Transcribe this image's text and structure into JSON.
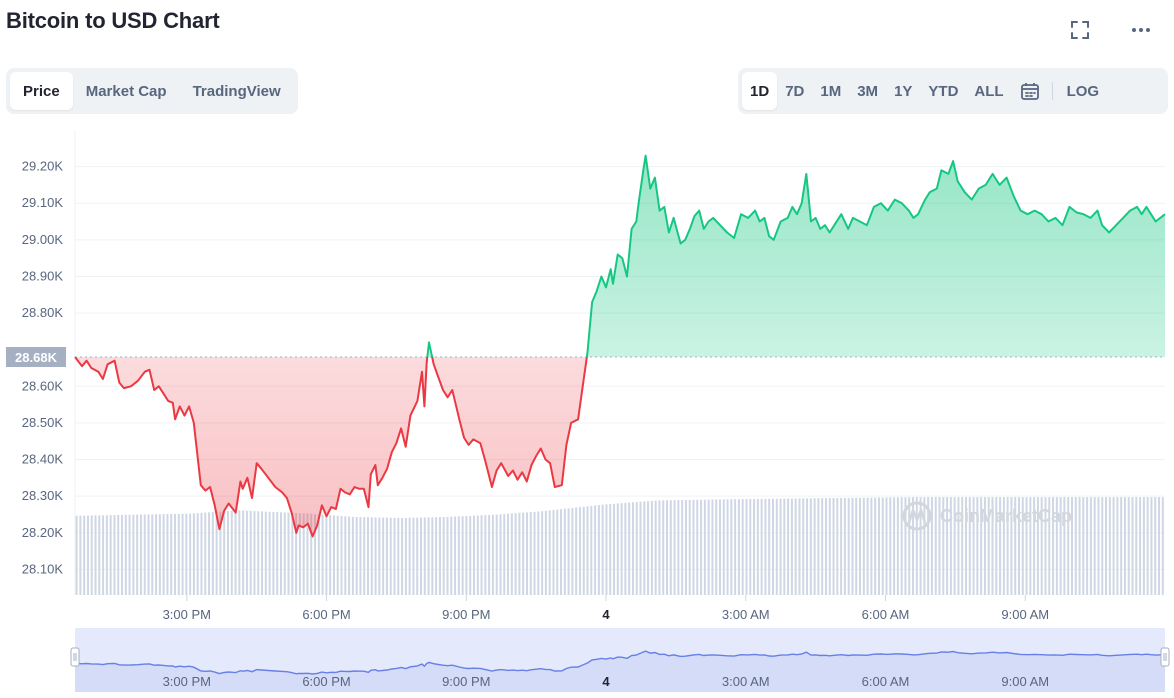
{
  "header": {
    "title": "Bitcoin to USD Chart"
  },
  "icons": {
    "fullscreen": "fullscreen-icon",
    "more": "more-icon",
    "calendar": "calendar-icon",
    "watermark_logo": "coinmarketcap-logo"
  },
  "metric_tabs": [
    {
      "label": "Price",
      "active": true
    },
    {
      "label": "Market Cap",
      "active": false
    },
    {
      "label": "TradingView",
      "active": false
    }
  ],
  "range_tabs": [
    {
      "label": "1D",
      "active": true
    },
    {
      "label": "7D",
      "active": false
    },
    {
      "label": "1M",
      "active": false
    },
    {
      "label": "3M",
      "active": false
    },
    {
      "label": "1Y",
      "active": false
    },
    {
      "label": "YTD",
      "active": false
    },
    {
      "label": "ALL",
      "active": false
    }
  ],
  "log_label": "LOG",
  "watermark": "CoinMarketCap",
  "colors": {
    "up": "#16c784",
    "down": "#ea3943",
    "volume": "#cfd6e4",
    "navigator_fill": "#e4e9fb",
    "navigator_line": "#6680e6",
    "baseline_label_bg": "#a6b0c3"
  },
  "chart_data": {
    "type": "area",
    "title": "Bitcoin to USD Chart",
    "baseline": 28680,
    "baseline_label": "28.68K",
    "ylim": [
      28030,
      29300
    ],
    "y_ticks": [
      {
        "value": 29200,
        "label": "29.20K"
      },
      {
        "value": 29100,
        "label": "29.10K"
      },
      {
        "value": 29000,
        "label": "29.00K"
      },
      {
        "value": 28900,
        "label": "28.90K"
      },
      {
        "value": 28800,
        "label": "28.80K"
      },
      {
        "value": 28600,
        "label": "28.60K"
      },
      {
        "value": 28500,
        "label": "28.50K"
      },
      {
        "value": 28400,
        "label": "28.40K"
      },
      {
        "value": 28300,
        "label": "28.30K"
      },
      {
        "value": 28200,
        "label": "28.20K"
      },
      {
        "value": 28100,
        "label": "28.10K"
      }
    ],
    "x_unit": "hours since chart start",
    "xlim": [
      0,
      23.4
    ],
    "x_ticks": [
      {
        "hour": 2.4,
        "label": "3:00 PM"
      },
      {
        "hour": 5.4,
        "label": "6:00 PM"
      },
      {
        "hour": 8.4,
        "label": "9:00 PM"
      },
      {
        "hour": 11.4,
        "label": "4"
      },
      {
        "hour": 14.4,
        "label": "3:00 AM"
      },
      {
        "hour": 17.4,
        "label": "6:00 AM"
      },
      {
        "hour": 20.4,
        "label": "9:00 AM"
      }
    ],
    "series": [
      {
        "name": "Price",
        "points": [
          [
            0.0,
            28680
          ],
          [
            0.15,
            28655
          ],
          [
            0.25,
            28670
          ],
          [
            0.35,
            28650
          ],
          [
            0.5,
            28640
          ],
          [
            0.6,
            28620
          ],
          [
            0.7,
            28660
          ],
          [
            0.85,
            28670
          ],
          [
            0.95,
            28610
          ],
          [
            1.05,
            28595
          ],
          [
            1.2,
            28600
          ],
          [
            1.35,
            28615
          ],
          [
            1.5,
            28640
          ],
          [
            1.6,
            28645
          ],
          [
            1.7,
            28590
          ],
          [
            1.8,
            28600
          ],
          [
            1.9,
            28580
          ],
          [
            2.0,
            28560
          ],
          [
            2.1,
            28555
          ],
          [
            2.15,
            28510
          ],
          [
            2.25,
            28545
          ],
          [
            2.35,
            28520
          ],
          [
            2.45,
            28545
          ],
          [
            2.55,
            28500
          ],
          [
            2.7,
            28330
          ],
          [
            2.8,
            28315
          ],
          [
            2.9,
            28325
          ],
          [
            3.0,
            28275
          ],
          [
            3.1,
            28210
          ],
          [
            3.2,
            28260
          ],
          [
            3.3,
            28280
          ],
          [
            3.45,
            28255
          ],
          [
            3.55,
            28340
          ],
          [
            3.6,
            28320
          ],
          [
            3.7,
            28350
          ],
          [
            3.8,
            28295
          ],
          [
            3.9,
            28390
          ],
          [
            4.0,
            28375
          ],
          [
            4.15,
            28350
          ],
          [
            4.3,
            28325
          ],
          [
            4.45,
            28310
          ],
          [
            4.55,
            28295
          ],
          [
            4.65,
            28255
          ],
          [
            4.75,
            28200
          ],
          [
            4.8,
            28220
          ],
          [
            4.9,
            28215
          ],
          [
            5.0,
            28225
          ],
          [
            5.1,
            28190
          ],
          [
            5.2,
            28220
          ],
          [
            5.3,
            28275
          ],
          [
            5.4,
            28245
          ],
          [
            5.5,
            28270
          ],
          [
            5.6,
            28265
          ],
          [
            5.7,
            28320
          ],
          [
            5.8,
            28310
          ],
          [
            5.9,
            28305
          ],
          [
            6.0,
            28325
          ],
          [
            6.1,
            28320
          ],
          [
            6.2,
            28320
          ],
          [
            6.3,
            28270
          ],
          [
            6.35,
            28360
          ],
          [
            6.45,
            28385
          ],
          [
            6.5,
            28330
          ],
          [
            6.6,
            28350
          ],
          [
            6.7,
            28375
          ],
          [
            6.8,
            28420
          ],
          [
            6.9,
            28445
          ],
          [
            7.0,
            28485
          ],
          [
            7.1,
            28435
          ],
          [
            7.2,
            28520
          ],
          [
            7.35,
            28560
          ],
          [
            7.45,
            28640
          ],
          [
            7.5,
            28545
          ],
          [
            7.55,
            28665
          ],
          [
            7.6,
            28720
          ],
          [
            7.7,
            28660
          ],
          [
            7.8,
            28625
          ],
          [
            7.9,
            28590
          ],
          [
            8.0,
            28570
          ],
          [
            8.1,
            28590
          ],
          [
            8.25,
            28510
          ],
          [
            8.35,
            28460
          ],
          [
            8.45,
            28440
          ],
          [
            8.55,
            28455
          ],
          [
            8.7,
            28445
          ],
          [
            8.8,
            28400
          ],
          [
            8.95,
            28325
          ],
          [
            9.05,
            28370
          ],
          [
            9.15,
            28390
          ],
          [
            9.3,
            28355
          ],
          [
            9.4,
            28370
          ],
          [
            9.5,
            28345
          ],
          [
            9.6,
            28365
          ],
          [
            9.7,
            28340
          ],
          [
            9.8,
            28385
          ],
          [
            9.9,
            28410
          ],
          [
            10.0,
            28430
          ],
          [
            10.1,
            28400
          ],
          [
            10.2,
            28390
          ],
          [
            10.3,
            28325
          ],
          [
            10.45,
            28330
          ],
          [
            10.55,
            28440
          ],
          [
            10.65,
            28500
          ],
          [
            10.8,
            28510
          ],
          [
            10.9,
            28600
          ],
          [
            11.0,
            28690
          ],
          [
            11.1,
            28830
          ],
          [
            11.2,
            28860
          ],
          [
            11.3,
            28900
          ],
          [
            11.4,
            28870
          ],
          [
            11.5,
            28920
          ],
          [
            11.55,
            28880
          ],
          [
            11.65,
            28960
          ],
          [
            11.75,
            28950
          ],
          [
            11.85,
            28900
          ],
          [
            11.95,
            29030
          ],
          [
            12.05,
            29050
          ],
          [
            12.1,
            29100
          ],
          [
            12.2,
            29190
          ],
          [
            12.25,
            29230
          ],
          [
            12.35,
            29140
          ],
          [
            12.45,
            29170
          ],
          [
            12.55,
            29080
          ],
          [
            12.65,
            29090
          ],
          [
            12.75,
            29020
          ],
          [
            12.85,
            29060
          ],
          [
            13.0,
            28990
          ],
          [
            13.1,
            29000
          ],
          [
            13.2,
            29030
          ],
          [
            13.3,
            29065
          ],
          [
            13.4,
            29080
          ],
          [
            13.5,
            29030
          ],
          [
            13.6,
            29050
          ],
          [
            13.7,
            29060
          ],
          [
            13.85,
            29040
          ],
          [
            14.0,
            29020
          ],
          [
            14.15,
            29005
          ],
          [
            14.3,
            29070
          ],
          [
            14.45,
            29060
          ],
          [
            14.6,
            29080
          ],
          [
            14.7,
            29050
          ],
          [
            14.8,
            29060
          ],
          [
            14.9,
            29010
          ],
          [
            15.0,
            29000
          ],
          [
            15.15,
            29050
          ],
          [
            15.3,
            29060
          ],
          [
            15.4,
            29090
          ],
          [
            15.5,
            29070
          ],
          [
            15.6,
            29100
          ],
          [
            15.7,
            29180
          ],
          [
            15.8,
            29050
          ],
          [
            15.9,
            29060
          ],
          [
            16.0,
            29030
          ],
          [
            16.1,
            29040
          ],
          [
            16.2,
            29020
          ],
          [
            16.3,
            29040
          ],
          [
            16.45,
            29070
          ],
          [
            16.6,
            29030
          ],
          [
            16.7,
            29060
          ],
          [
            16.85,
            29050
          ],
          [
            17.0,
            29040
          ],
          [
            17.15,
            29090
          ],
          [
            17.3,
            29100
          ],
          [
            17.45,
            29080
          ],
          [
            17.6,
            29110
          ],
          [
            17.75,
            29100
          ],
          [
            17.9,
            29080
          ],
          [
            18.0,
            29060
          ],
          [
            18.1,
            29070
          ],
          [
            18.25,
            29110
          ],
          [
            18.35,
            29130
          ],
          [
            18.5,
            29140
          ],
          [
            18.6,
            29190
          ],
          [
            18.75,
            29180
          ],
          [
            18.85,
            29215
          ],
          [
            18.95,
            29160
          ],
          [
            19.1,
            29130
          ],
          [
            19.25,
            29110
          ],
          [
            19.4,
            29140
          ],
          [
            19.55,
            29150
          ],
          [
            19.7,
            29180
          ],
          [
            19.85,
            29150
          ],
          [
            20.0,
            29170
          ],
          [
            20.15,
            29120
          ],
          [
            20.3,
            29080
          ],
          [
            20.45,
            29070
          ],
          [
            20.6,
            29080
          ],
          [
            20.75,
            29070
          ],
          [
            20.9,
            29050
          ],
          [
            21.05,
            29060
          ],
          [
            21.2,
            29040
          ],
          [
            21.35,
            29090
          ],
          [
            21.5,
            29075
          ],
          [
            21.65,
            29070
          ],
          [
            21.8,
            29060
          ],
          [
            21.95,
            29080
          ],
          [
            22.05,
            29040
          ],
          [
            22.2,
            29020
          ],
          [
            22.35,
            29040
          ],
          [
            22.5,
            29060
          ],
          [
            22.65,
            29080
          ],
          [
            22.8,
            29090
          ],
          [
            22.9,
            29070
          ],
          [
            23.0,
            29090
          ],
          [
            23.1,
            29070
          ],
          [
            23.2,
            29050
          ],
          [
            23.4,
            29070
          ]
        ]
      }
    ],
    "volume_relative": [
      [
        0,
        0.72
      ],
      [
        2.5,
        0.74
      ],
      [
        3.5,
        0.77
      ],
      [
        5,
        0.74
      ],
      [
        6,
        0.71
      ],
      [
        7,
        0.7
      ],
      [
        8,
        0.71
      ],
      [
        9,
        0.73
      ],
      [
        10,
        0.76
      ],
      [
        11.3,
        0.82
      ],
      [
        12.5,
        0.86
      ],
      [
        14,
        0.87
      ],
      [
        16,
        0.88
      ],
      [
        18,
        0.89
      ],
      [
        20,
        0.89
      ],
      [
        23.4,
        0.89
      ]
    ],
    "navigator": {
      "x_ticks": [
        "3:00 PM",
        "6:00 PM",
        "9:00 PM",
        "4",
        "3:00 AM",
        "6:00 AM",
        "9:00 AM"
      ]
    }
  }
}
